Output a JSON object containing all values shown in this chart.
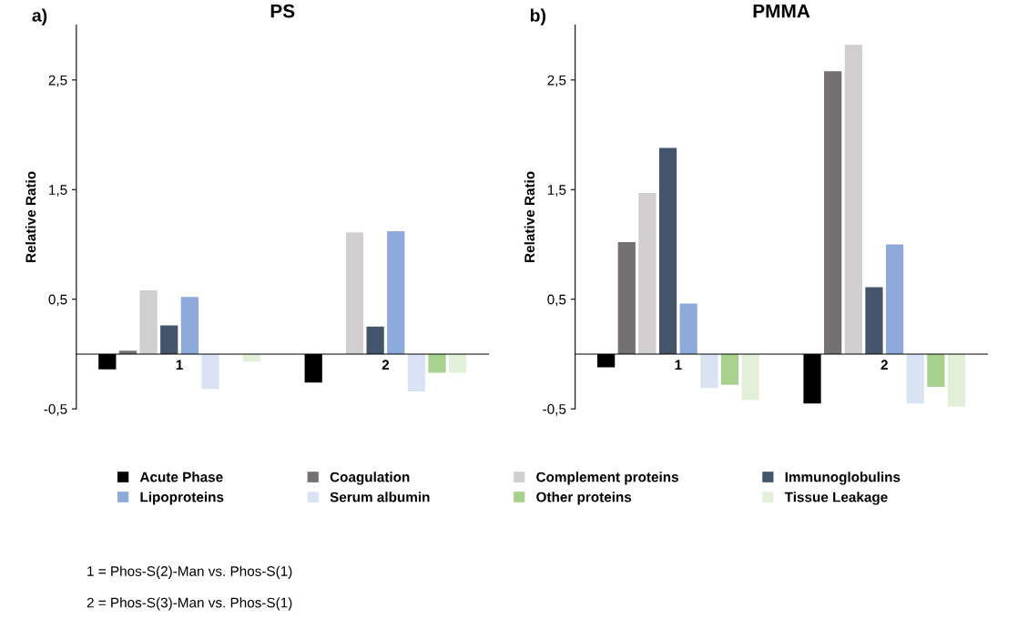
{
  "chart_data": [
    {
      "type": "bar",
      "title": "PS",
      "ylabel": "Relative Ratio",
      "categories": [
        "1",
        "2"
      ],
      "ylim": [
        -0.5,
        3.0
      ],
      "yticks": [
        {
          "value": -0.5,
          "label": "-0,5"
        },
        {
          "value": 0.5,
          "label": "0,5"
        },
        {
          "value": 1.5,
          "label": "1,5"
        },
        {
          "value": 2.5,
          "label": "2,5"
        }
      ],
      "grid": false,
      "legend": "bottom",
      "annotations": [
        "a)",
        "1 = Phos-S(2)-Man vs. Phos-S(1)",
        "2 = Phos-S(3)-Man vs. Phos-S(1)"
      ],
      "series": [
        {
          "name": "Acute Phase",
          "color": "#000000",
          "values": [
            -0.14,
            -0.26
          ]
        },
        {
          "name": "Coagulation",
          "color": "#767171",
          "values": [
            0.03,
            0
          ]
        },
        {
          "name": "Complement proteins",
          "color": "#d0cece",
          "values": [
            0.58,
            1.11
          ]
        },
        {
          "name": "Immunoglobulins",
          "color": "#44546a",
          "values": [
            0.26,
            0.25
          ]
        },
        {
          "name": "Lipoproteins",
          "color": "#8eaadb",
          "values": [
            0.52,
            1.12
          ]
        },
        {
          "name": "Serum albumin",
          "color": "#dae3f3",
          "values": [
            -0.32,
            -0.34
          ]
        },
        {
          "name": "Other proteins",
          "color": "#a9d18e",
          "values": [
            0,
            -0.17
          ]
        },
        {
          "name": "Tissue Leakage",
          "color": "#e2f0d9",
          "values": [
            -0.07,
            -0.17
          ]
        }
      ]
    },
    {
      "type": "bar",
      "title": "PMMA",
      "ylabel": "Relative Ratio",
      "categories": [
        "1",
        "2"
      ],
      "ylim": [
        -0.5,
        3.0
      ],
      "yticks": [
        {
          "value": -0.5,
          "label": "-0,5"
        },
        {
          "value": 0.5,
          "label": "0,5"
        },
        {
          "value": 1.5,
          "label": "1,5"
        },
        {
          "value": 2.5,
          "label": "2,5"
        }
      ],
      "grid": false,
      "annotations": [
        "b)"
      ],
      "series": [
        {
          "name": "Acute Phase",
          "color": "#000000",
          "values": [
            -0.12,
            -0.45
          ]
        },
        {
          "name": "Coagulation",
          "color": "#767171",
          "values": [
            1.02,
            2.58
          ]
        },
        {
          "name": "Complement proteins",
          "color": "#d0cece",
          "values": [
            1.47,
            2.82
          ]
        },
        {
          "name": "Immunoglobulins",
          "color": "#44546a",
          "values": [
            1.88,
            0.61
          ]
        },
        {
          "name": "Lipoproteins",
          "color": "#8eaadb",
          "values": [
            0.46,
            1.0
          ]
        },
        {
          "name": "Serum albumin",
          "color": "#dae3f3",
          "values": [
            -0.31,
            -0.45
          ]
        },
        {
          "name": "Other proteins",
          "color": "#a9d18e",
          "values": [
            -0.28,
            -0.3
          ]
        },
        {
          "name": "Tissue Leakage",
          "color": "#e2f0d9",
          "values": [
            -0.42,
            -0.48
          ]
        }
      ]
    }
  ]
}
